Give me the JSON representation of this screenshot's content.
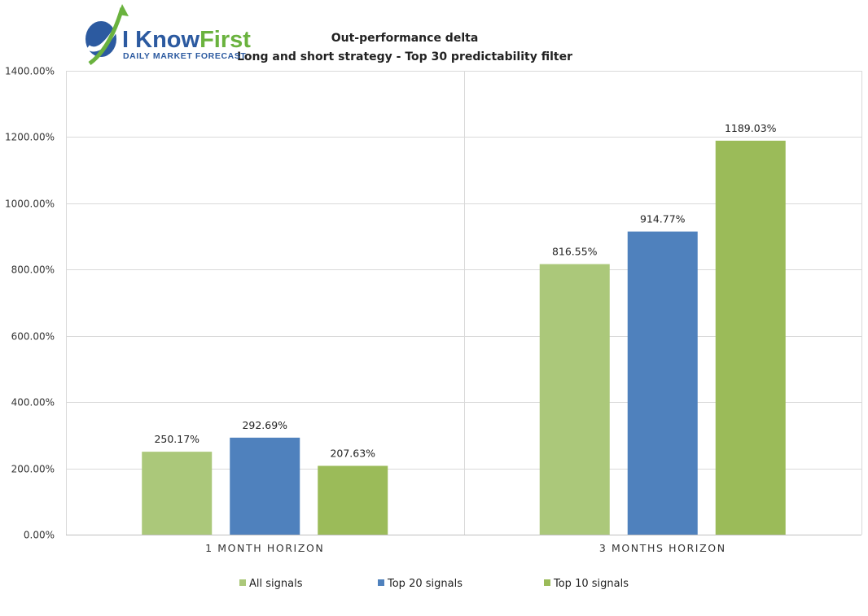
{
  "logo": {
    "brand_first": "I ",
    "brand_know": "Know",
    "brand_rest": "First",
    "tagline": "Daily Market Forecast",
    "colors": {
      "blue": "#2c5aa0",
      "green": "#6ab23e"
    }
  },
  "chart_data": {
    "type": "bar",
    "title": "Out-performance delta",
    "subtitle": "Long and short strategy - Top 30 predictability filter",
    "categories": [
      "1 MONTH HORIZON",
      "3 MONTHS HORIZON"
    ],
    "series": [
      {
        "name": "All signals",
        "values": [
          250.17,
          816.55
        ],
        "labels": [
          "250.17%",
          "816.55%"
        ],
        "color": "#abc87a"
      },
      {
        "name": "Top 20 signals",
        "values": [
          292.69,
          914.77
        ],
        "labels": [
          "292.69%",
          "914.77%"
        ],
        "color": "#4f81bd"
      },
      {
        "name": "Top 10 signals",
        "values": [
          207.63,
          1189.03
        ],
        "labels": [
          "207.63%",
          "1189.03%"
        ],
        "color": "#9bbb59"
      }
    ],
    "ylim": [
      0,
      1400
    ],
    "yticks": [
      0,
      200,
      400,
      600,
      800,
      1000,
      1200,
      1400
    ],
    "ytick_labels": [
      "0.00%",
      "200.00%",
      "400.00%",
      "600.00%",
      "800.00%",
      "1000.00%",
      "1200.00%",
      "1400.00%"
    ],
    "grid": true,
    "legend": "bottom",
    "colors": {
      "grid": "#d9d9d9",
      "axis": "#bfbfbf"
    }
  }
}
